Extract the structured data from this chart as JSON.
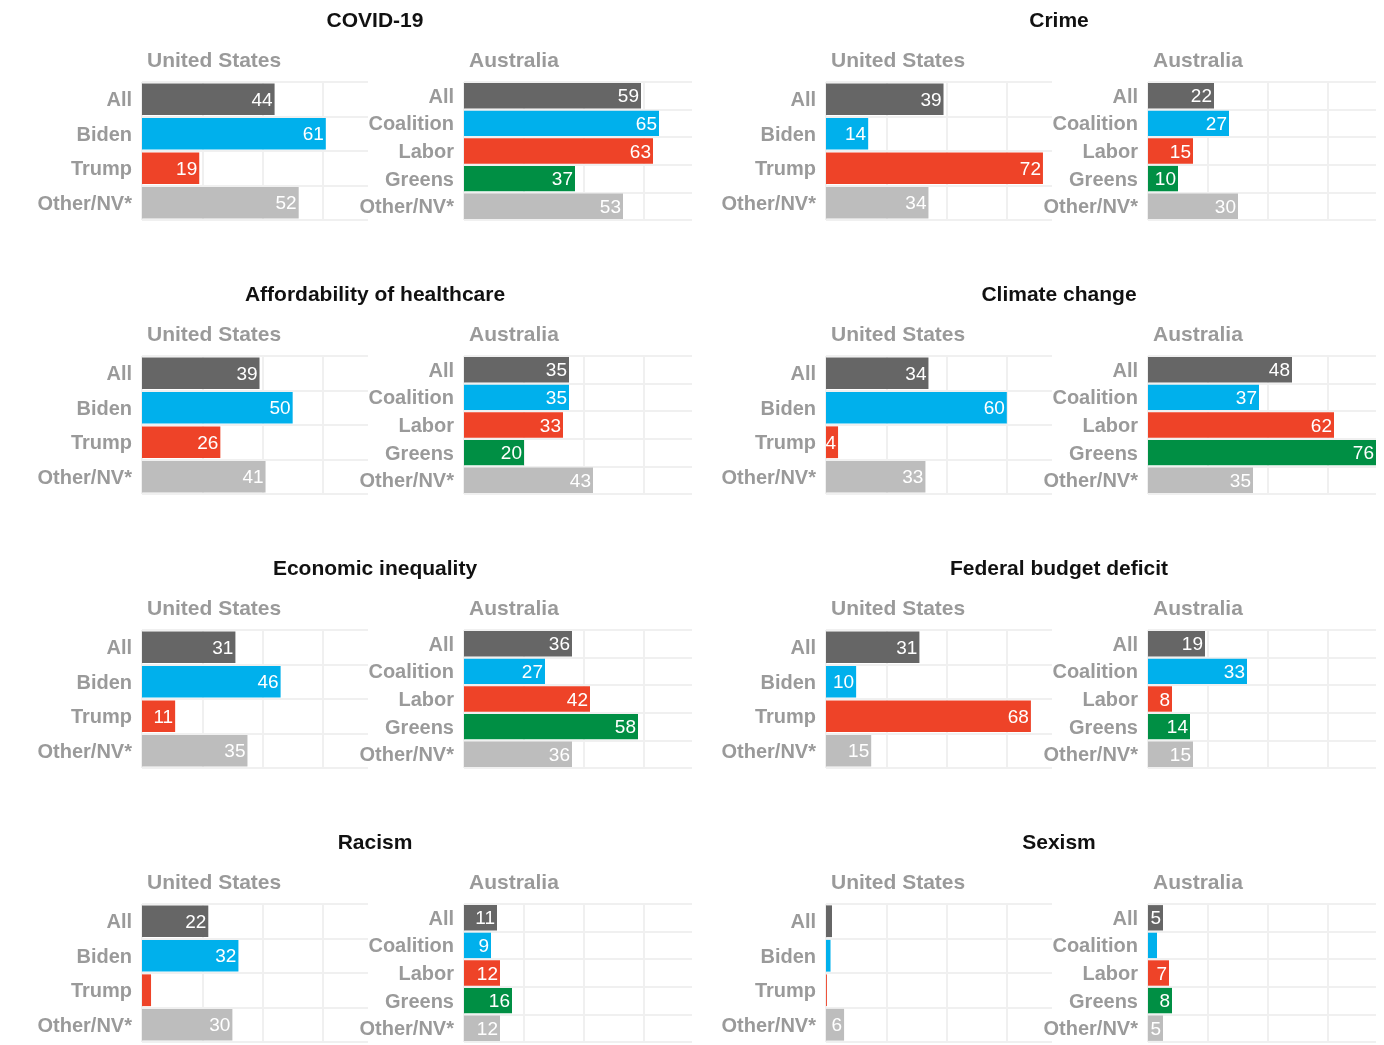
{
  "chart_data": [
    {
      "type": "bar",
      "orientation": "horizontal",
      "title": "COVID-19",
      "subtitle": "United States",
      "categories": [
        "All",
        "Biden",
        "Trump",
        "Other/NV*"
      ],
      "values": [
        44,
        61,
        19,
        52
      ],
      "colors": [
        "#666666",
        "#00b0ec",
        "#ee4328",
        "#bdbdbd"
      ],
      "xlim": [
        0,
        75
      ],
      "xticks": [
        {
          "value": 0,
          "label": null
        },
        {
          "value": 20,
          "label": null
        },
        {
          "value": 40,
          "label": null
        },
        {
          "value": 60,
          "label": null
        }
      ],
      "grid": true,
      "tick_labels": "y",
      "data_labels": true
    },
    {
      "type": "bar",
      "orientation": "horizontal",
      "subtitle": "Australia",
      "categories": [
        "All",
        "Coalition",
        "Labor",
        "Greens",
        "Other/NV*"
      ],
      "values": [
        59,
        65,
        63,
        37,
        53
      ],
      "colors": [
        "#666666",
        "#00b0ec",
        "#ee4328",
        "#008f44",
        "#bdbdbd"
      ],
      "xlim": [
        0,
        76
      ],
      "xticks": [
        {
          "value": 0,
          "label": null
        },
        {
          "value": 20,
          "label": null
        },
        {
          "value": 40,
          "label": null
        },
        {
          "value": 60,
          "label": null
        }
      ],
      "grid": true,
      "tick_labels": "y",
      "data_labels": true
    },
    {
      "type": "bar",
      "orientation": "horizontal",
      "title": "Crime",
      "subtitle": "United States",
      "categories": [
        "All",
        "Biden",
        "Trump",
        "Other/NV*"
      ],
      "values": [
        39,
        14,
        72,
        34
      ],
      "colors": [
        "#666666",
        "#00b0ec",
        "#ee4328",
        "#bdbdbd"
      ],
      "xlim": [
        0,
        75
      ],
      "xticks": [
        {
          "value": 0,
          "label": null
        },
        {
          "value": 20,
          "label": null
        },
        {
          "value": 40,
          "label": null
        },
        {
          "value": 60,
          "label": null
        }
      ],
      "grid": true,
      "tick_labels": "y",
      "data_labels": true
    },
    {
      "type": "bar",
      "orientation": "horizontal",
      "subtitle": "Australia",
      "categories": [
        "All",
        "Coalition",
        "Labor",
        "Greens",
        "Other/NV*"
      ],
      "values": [
        22,
        27,
        15,
        10,
        30
      ],
      "colors": [
        "#666666",
        "#00b0ec",
        "#ee4328",
        "#008f44",
        "#bdbdbd"
      ],
      "xlim": [
        0,
        76
      ],
      "xticks": [
        {
          "value": 0,
          "label": null
        },
        {
          "value": 20,
          "label": null
        },
        {
          "value": 40,
          "label": null
        },
        {
          "value": 60,
          "label": null
        }
      ],
      "grid": true,
      "tick_labels": "y",
      "data_labels": true
    },
    {
      "type": "bar",
      "orientation": "horizontal",
      "title": "Affordability of healthcare",
      "subtitle": "United States",
      "categories": [
        "All",
        "Biden",
        "Trump",
        "Other/NV*"
      ],
      "values": [
        39,
        50,
        26,
        41
      ],
      "colors": [
        "#666666",
        "#00b0ec",
        "#ee4328",
        "#bdbdbd"
      ],
      "xlim": [
        0,
        75
      ],
      "xticks": [
        {
          "value": 0,
          "label": null
        },
        {
          "value": 20,
          "label": null
        },
        {
          "value": 40,
          "label": null
        },
        {
          "value": 60,
          "label": null
        }
      ],
      "grid": true,
      "tick_labels": "y",
      "data_labels": true
    },
    {
      "type": "bar",
      "orientation": "horizontal",
      "subtitle": "Australia",
      "categories": [
        "All",
        "Coalition",
        "Labor",
        "Greens",
        "Other/NV*"
      ],
      "values": [
        35,
        35,
        33,
        20,
        43
      ],
      "colors": [
        "#666666",
        "#00b0ec",
        "#ee4328",
        "#008f44",
        "#bdbdbd"
      ],
      "xlim": [
        0,
        76
      ],
      "xticks": [
        {
          "value": 0,
          "label": null
        },
        {
          "value": 20,
          "label": null
        },
        {
          "value": 40,
          "label": null
        },
        {
          "value": 60,
          "label": null
        }
      ],
      "grid": true,
      "tick_labels": "y",
      "data_labels": true
    },
    {
      "type": "bar",
      "orientation": "horizontal",
      "title": "Climate change",
      "subtitle": "United States",
      "categories": [
        "All",
        "Biden",
        "Trump",
        "Other/NV*"
      ],
      "values": [
        34,
        60,
        4,
        33
      ],
      "colors": [
        "#666666",
        "#00b0ec",
        "#ee4328",
        "#bdbdbd"
      ],
      "xlim": [
        0,
        75
      ],
      "xticks": [
        {
          "value": 0,
          "label": null
        },
        {
          "value": 20,
          "label": null
        },
        {
          "value": 40,
          "label": null
        },
        {
          "value": 60,
          "label": null
        }
      ],
      "grid": true,
      "tick_labels": "y",
      "data_labels": true
    },
    {
      "type": "bar",
      "orientation": "horizontal",
      "subtitle": "Australia",
      "categories": [
        "All",
        "Coalition",
        "Labor",
        "Greens",
        "Other/NV*"
      ],
      "values": [
        48,
        37,
        62,
        76,
        35
      ],
      "colors": [
        "#666666",
        "#00b0ec",
        "#ee4328",
        "#008f44",
        "#bdbdbd"
      ],
      "xlim": [
        0,
        76
      ],
      "xticks": [
        {
          "value": 0,
          "label": null
        },
        {
          "value": 20,
          "label": null
        },
        {
          "value": 40,
          "label": null
        },
        {
          "value": 60,
          "label": null
        }
      ],
      "grid": true,
      "tick_labels": "y",
      "data_labels": true
    },
    {
      "type": "bar",
      "orientation": "horizontal",
      "title": "Economic inequality",
      "subtitle": "United States",
      "categories": [
        "All",
        "Biden",
        "Trump",
        "Other/NV*"
      ],
      "values": [
        31,
        46,
        11,
        35
      ],
      "colors": [
        "#666666",
        "#00b0ec",
        "#ee4328",
        "#bdbdbd"
      ],
      "xlim": [
        0,
        75
      ],
      "xticks": [
        {
          "value": 0,
          "label": null
        },
        {
          "value": 20,
          "label": null
        },
        {
          "value": 40,
          "label": null
        },
        {
          "value": 60,
          "label": null
        }
      ],
      "grid": true,
      "tick_labels": "y",
      "data_labels": true
    },
    {
      "type": "bar",
      "orientation": "horizontal",
      "subtitle": "Australia",
      "categories": [
        "All",
        "Coalition",
        "Labor",
        "Greens",
        "Other/NV*"
      ],
      "values": [
        36,
        27,
        42,
        58,
        36
      ],
      "colors": [
        "#666666",
        "#00b0ec",
        "#ee4328",
        "#008f44",
        "#bdbdbd"
      ],
      "xlim": [
        0,
        76
      ],
      "xticks": [
        {
          "value": 0,
          "label": null
        },
        {
          "value": 20,
          "label": null
        },
        {
          "value": 40,
          "label": null
        },
        {
          "value": 60,
          "label": null
        }
      ],
      "grid": true,
      "tick_labels": "y",
      "data_labels": true
    },
    {
      "type": "bar",
      "orientation": "horizontal",
      "title": "Federal budget deficit",
      "subtitle": "United States",
      "categories": [
        "All",
        "Biden",
        "Trump",
        "Other/NV*"
      ],
      "values": [
        31,
        10,
        68,
        15
      ],
      "colors": [
        "#666666",
        "#00b0ec",
        "#ee4328",
        "#bdbdbd"
      ],
      "xlim": [
        0,
        75
      ],
      "xticks": [
        {
          "value": 0,
          "label": null
        },
        {
          "value": 20,
          "label": null
        },
        {
          "value": 40,
          "label": null
        },
        {
          "value": 60,
          "label": null
        }
      ],
      "grid": true,
      "tick_labels": "y",
      "data_labels": true
    },
    {
      "type": "bar",
      "orientation": "horizontal",
      "subtitle": "Australia",
      "categories": [
        "All",
        "Coalition",
        "Labor",
        "Greens",
        "Other/NV*"
      ],
      "values": [
        19,
        33,
        8,
        14,
        15
      ],
      "colors": [
        "#666666",
        "#00b0ec",
        "#ee4328",
        "#008f44",
        "#bdbdbd"
      ],
      "xlim": [
        0,
        76
      ],
      "xticks": [
        {
          "value": 0,
          "label": null
        },
        {
          "value": 20,
          "label": null
        },
        {
          "value": 40,
          "label": null
        },
        {
          "value": 60,
          "label": null
        }
      ],
      "grid": true,
      "tick_labels": "y",
      "data_labels": true
    },
    {
      "type": "bar",
      "orientation": "horizontal",
      "title": "Racism",
      "subtitle": "United States",
      "categories": [
        "All",
        "Biden",
        "Trump",
        "Other/NV*"
      ],
      "values": [
        22,
        32,
        3,
        30
      ],
      "value_labels": [
        "22",
        "32",
        null,
        "30"
      ],
      "colors": [
        "#666666",
        "#00b0ec",
        "#ee4328",
        "#bdbdbd"
      ],
      "xlim": [
        0,
        75
      ],
      "xticks": [
        {
          "value": 0,
          "label": null
        },
        {
          "value": 20,
          "label": null
        },
        {
          "value": 40,
          "label": null
        },
        {
          "value": 60,
          "label": null
        }
      ],
      "grid": true,
      "tick_labels": "y"
    },
    {
      "type": "bar",
      "orientation": "horizontal",
      "subtitle": "Australia",
      "categories": [
        "All",
        "Coalition",
        "Labor",
        "Greens",
        "Other/NV*"
      ],
      "values": [
        11,
        9,
        12,
        16,
        12
      ],
      "colors": [
        "#666666",
        "#00b0ec",
        "#ee4328",
        "#008f44",
        "#bdbdbd"
      ],
      "xlim": [
        0,
        76
      ],
      "xticks": [
        {
          "value": 0,
          "label": null
        },
        {
          "value": 20,
          "label": null
        },
        {
          "value": 40,
          "label": null
        },
        {
          "value": 60,
          "label": null
        }
      ],
      "grid": true,
      "tick_labels": "y",
      "data_labels": true
    },
    {
      "type": "bar",
      "orientation": "horizontal",
      "title": "Sexism",
      "subtitle": "United States",
      "categories": [
        "All",
        "Biden",
        "Trump",
        "Other/NV*"
      ],
      "values": [
        2,
        1.5,
        0.3,
        6
      ],
      "value_labels": [
        null,
        null,
        null,
        "6"
      ],
      "colors": [
        "#666666",
        "#00b0ec",
        "#ee4328",
        "#bdbdbd"
      ],
      "xlim": [
        0,
        75
      ],
      "xticks": [
        {
          "value": 0,
          "label": null
        },
        {
          "value": 20,
          "label": null
        },
        {
          "value": 40,
          "label": null
        },
        {
          "value": 60,
          "label": null
        }
      ],
      "grid": true,
      "tick_labels": "y"
    },
    {
      "type": "bar",
      "orientation": "horizontal",
      "subtitle": "Australia",
      "categories": [
        "All",
        "Coalition",
        "Labor",
        "Greens",
        "Other/NV*"
      ],
      "values": [
        5,
        3,
        7,
        8,
        5
      ],
      "value_labels": [
        "5",
        null,
        "7",
        "8",
        "5"
      ],
      "colors": [
        "#666666",
        "#00b0ec",
        "#ee4328",
        "#008f44",
        "#bdbdbd"
      ],
      "xlim": [
        0,
        76
      ],
      "xticks": [
        {
          "value": 0,
          "label": null
        },
        {
          "value": 20,
          "label": null
        },
        {
          "value": 40,
          "label": null
        },
        {
          "value": 60,
          "label": null
        }
      ],
      "grid": true,
      "tick_labels": "y"
    }
  ]
}
